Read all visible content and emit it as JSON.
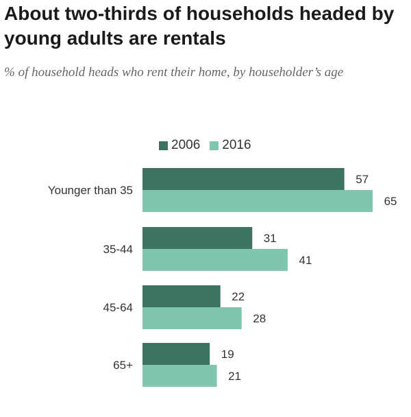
{
  "title": "About two-thirds of households headed by young adults are rentals",
  "subtitle": "% of household heads who rent their home, by householder’s age",
  "colors": {
    "series_2006": "#3d7361",
    "series_2016": "#7fc6ad"
  },
  "chart_data": {
    "type": "bar",
    "orientation": "horizontal",
    "title": "About two-thirds of households headed by young adults are rentals",
    "subtitle": "% of household heads who rent their home, by householder’s age",
    "categories": [
      "Younger than 35",
      "35-44",
      "45-64",
      "65+"
    ],
    "series": [
      {
        "name": "2006",
        "values": [
          57,
          31,
          22,
          19
        ]
      },
      {
        "name": "2016",
        "values": [
          65,
          41,
          28,
          21
        ]
      }
    ],
    "xlim": [
      0,
      70
    ],
    "grid": false,
    "legend_position": "top"
  }
}
